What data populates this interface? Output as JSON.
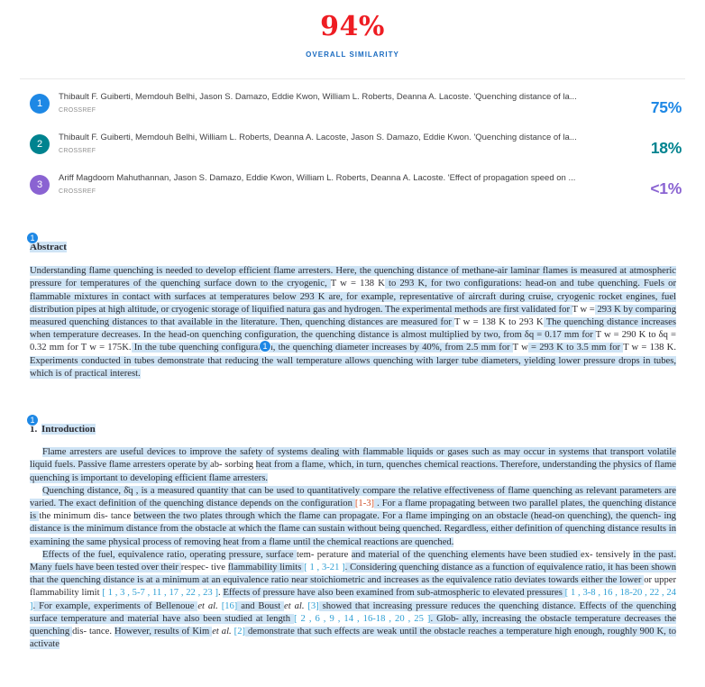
{
  "header": {
    "score": "94%",
    "label": "OVERALL SIMILARITY",
    "score_color": "#ee1d23",
    "label_color": "#1a6bc0"
  },
  "sources": [
    {
      "num": "1",
      "title": "Thibault F. Guiberti, Memdouh Belhi, Jason S. Damazo, Eddie Kwon, William L. Roberts, Deanna A. Lacoste. 'Quenching distance of la...",
      "db": "CROSSREF",
      "percent": "75%",
      "color": "#1e88e5"
    },
    {
      "num": "2",
      "title": "Thibault F. Guiberti, Memdouh Belhi, William L. Roberts, Deanna A. Lacoste, Jason S. Damazo, Eddie Kwon. 'Quenching distance of la...",
      "db": "CROSSREF",
      "percent": "18%",
      "color": "#00838f"
    },
    {
      "num": "3",
      "title": "Ariff Magdoom Mahuthannan, Jason S. Damazo, Eddie Kwon, William L. Roberts, Deanna A. Lacoste. 'Effect of propagation speed on ...",
      "db": "CROSSREF",
      "percent": "<1%",
      "color": "#8a63d2"
    }
  ],
  "document": {
    "highlight_color": "#cfe4f5",
    "cite_color": "#2e9fd4",
    "cite_alt_color": "#cf4e27",
    "inline_badge": "1",
    "abstract": {
      "badge": "1",
      "heading": "Abstract",
      "segments": [
        {
          "t": "Understanding flame quenching is needed to develop efficient flame arresters. Here, the quenching distance of methane-air laminar flames is measured at atmospheric pressure for temperatures of the quenching surface down to the cryogenic, ",
          "h": true
        },
        {
          "t": "T w = 138 K",
          "h": false
        },
        {
          "t": " to 293 K, for two configurations: head-on and tube quenching. Fuels or flammable mixtures in contact with surfaces at temperatures below 293 K are, for example, representative of aircraft during cruise, cryogenic rocket engines, fuel distribution pipes at high altitude, or cryogenic storage of liquified natura gas and hydrogen. The experimental methods are first validated for ",
          "h": true
        },
        {
          "t": "T w =",
          "h": false
        },
        {
          "t": " 293 K by comparing measured quenching distances to that available in the literature. Then, quenching distances are measured for ",
          "h": true
        },
        {
          "t": "T w = 138 K to 293 K",
          "h": false
        },
        {
          "t": " The quenching distance increases when temperature decreases. In the head-on quenching configuration, the quenching distance is almost multiplied by two, from δq = 0.17 mm for ",
          "h": true
        },
        {
          "t": "T w = 290 K to δq = 0.32 mm for T w = 175K.",
          "h": false
        },
        {
          "t": " In the tube quenching configuration, the quenching diameter increases by 40%, from 2.5 mm for ",
          "h": true
        },
        {
          "t": "T w",
          "h": false
        },
        {
          "t": " = 293 K to 3.5 mm for ",
          "h": true
        },
        {
          "t": "T w = 138 K.",
          "h": false
        },
        {
          "t": " Experiments conducted in tubes demonstrate that reducing the wall temperature allows quenching with larger tube diameters, yielding lower pressure drops in tubes, which is of practical interest.",
          "h": true
        }
      ]
    },
    "introduction": {
      "badge": "1",
      "number": "1.",
      "heading": "Introduction",
      "paragraphs": [
        [
          {
            "t": "Flame arresters are useful devices to improve the safety of systems dealing with flammable liquids or gases such as may occur in systems that transport volatile liquid fuels. Passive flame arresters operate by ",
            "h": true
          },
          {
            "t": "ab- sorbing ",
            "h": false
          },
          {
            "t": "heat from a flame, which, in turn, quenches chemical reactions. Therefore, understanding the physics of flame quenching is important to developing efficient flame arresters.",
            "h": true
          }
        ],
        [
          {
            "t": "Quenching distance, δ̄q , is a measured quantity that can be used to quantitatively compare the relative effectiveness of flame quenching as relevant parameters are varied. The exact definition of the quenching distance depends on the configuration ",
            "h": true
          },
          {
            "t": "[1-3]",
            "c": "alt"
          },
          {
            "t": " . For a flame propagating between two parallel plates, the quenching distance is ",
            "h": true
          },
          {
            "t": "the minimum dis- tance ",
            "h": false
          },
          {
            "t": "between the two plates through which the flame can propagate. For a flame impinging on an obstacle (head-on quenching), the quench- ing distance is the minimum distance from the obstacle at which the flame can sustain without being quenched. Regardless, either definition of quenching distance results in examining the same physical process of removing heat from a flame until the chemical reactions are quenched.",
            "h": true
          }
        ],
        [
          {
            "t": "Effects of the fuel, equivalence ratio, operating pressure, surface ",
            "h": true
          },
          {
            "t": "tem- perature ",
            "h": false
          },
          {
            "t": "and material of the quenching elements have been studied ",
            "h": true
          },
          {
            "t": "ex- tensively ",
            "h": false
          },
          {
            "t": "in the past. Many fuels have been tested over their ",
            "h": true
          },
          {
            "t": "respec- tive ",
            "h": false
          },
          {
            "t": "flammability limits ",
            "h": true
          },
          {
            "t": "[ 1 , 3-21 ]",
            "c": "main"
          },
          {
            "t": ". Considering quenching distance as a function of equivalence ratio, it has been shown that the quenching distance is at a minimum at an equivalence ratio near stoichiometric and increases as the equivalence ratio deviates towards either the lower ",
            "h": true
          },
          {
            "t": "or upper flammability limit ",
            "h": false
          },
          {
            "t": "[ 1 , 3 , 5-7 , 11 , 17 , 22 , 23 ]",
            "c": "main"
          },
          {
            "t": ". ",
            "h": false
          },
          {
            "t": "Effects of pressure have also been examined from sub-atmospheric to elevated pressures ",
            "h": true
          },
          {
            "t": "[ 1 , 3-8 , 16 , 18-20 , 22 , 24 ]",
            "c": "main"
          },
          {
            "t": ". For example, experiments of Bellenoue ",
            "h": true
          },
          {
            "t": "et al.",
            "h": false,
            "i": true
          },
          {
            "t": " ",
            "h": false
          },
          {
            "t": "[16]",
            "c": "main"
          },
          {
            "t": " and Boust ",
            "h": true
          },
          {
            "t": "et al.",
            "h": false,
            "i": true
          },
          {
            "t": " ",
            "h": false
          },
          {
            "t": "[3]",
            "c": "main"
          },
          {
            "t": " showed that increasing pressure reduces the quenching distance. Effects of the quenching surface temperature and material have also been studied at length ",
            "h": true
          },
          {
            "t": "[ 2 , 6 , 9 , 14 , 16-18 , 20 , 25 ]",
            "c": "main"
          },
          {
            "t": ". Glob- ally, increasing the obstacle temperature decreases the quenching ",
            "h": true
          },
          {
            "t": "dis- tance. ",
            "h": false
          },
          {
            "t": "However, results of Kim ",
            "h": true
          },
          {
            "t": "et al.",
            "h": false,
            "i": true
          },
          {
            "t": " ",
            "h": false
          },
          {
            "t": "[2]",
            "c": "main"
          },
          {
            "t": " demonstrate that such effects are weak until the obstacle reaches a temperature high enough, roughly 900 K, to activate",
            "h": true
          }
        ]
      ]
    }
  }
}
